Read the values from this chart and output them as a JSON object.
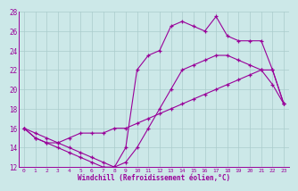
{
  "xlabel": "Windchill (Refroidissement éolien,°C)",
  "bg_color": "#cce8e8",
  "line_color": "#990099",
  "grid_color": "#aacccc",
  "xlim": [
    -0.5,
    23.5
  ],
  "ylim": [
    12,
    28
  ],
  "xticks": [
    0,
    1,
    2,
    3,
    4,
    5,
    6,
    7,
    8,
    9,
    10,
    11,
    12,
    13,
    14,
    15,
    16,
    17,
    18,
    19,
    20,
    21,
    22,
    23
  ],
  "yticks": [
    12,
    14,
    16,
    18,
    20,
    22,
    24,
    26,
    28
  ],
  "line1_x": [
    0,
    1,
    2,
    3,
    4,
    5,
    6,
    7,
    8,
    9,
    10,
    11,
    12,
    13,
    14,
    15,
    16,
    17,
    18,
    19,
    20,
    21,
    22,
    23
  ],
  "line1_y": [
    16,
    15,
    14.5,
    14.5,
    15,
    15.5,
    15.5,
    15.5,
    16,
    16,
    16.5,
    17,
    17.5,
    18,
    18.5,
    19,
    19.5,
    20,
    20.5,
    21,
    21.5,
    22,
    22,
    18.5
  ],
  "line2_x": [
    0,
    1,
    2,
    3,
    4,
    5,
    6,
    7,
    8,
    9,
    10,
    11,
    12,
    13,
    14,
    15,
    16,
    17,
    18,
    19,
    20,
    21,
    22,
    23
  ],
  "line2_y": [
    16,
    15.5,
    15,
    14.5,
    14,
    13.5,
    13,
    12.5,
    12,
    12.5,
    14,
    16,
    18,
    20,
    22,
    22.5,
    23,
    23.5,
    23.5,
    23,
    22.5,
    22,
    20.5,
    18.5
  ],
  "line3_x": [
    0,
    1,
    2,
    3,
    4,
    5,
    6,
    7,
    8,
    9,
    10,
    11,
    12,
    13,
    14,
    15,
    16,
    17,
    18,
    19,
    20,
    21,
    22,
    23
  ],
  "line3_y": [
    16,
    15,
    14.5,
    14,
    13.5,
    13,
    12.5,
    12,
    12,
    14,
    22,
    23.5,
    24,
    26.5,
    27,
    26.5,
    26,
    27.5,
    25.5,
    25,
    25,
    25,
    22,
    18.5
  ]
}
